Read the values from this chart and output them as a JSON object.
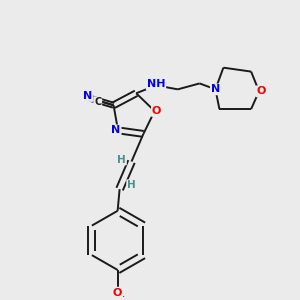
{
  "bg_color": "#ebebeb",
  "bond_color": "#1a1a1a",
  "atom_colors": {
    "N": "#0000ee",
    "O": "#ee0000",
    "C": "#1a1a1a",
    "H": "#4a9090"
  },
  "figsize": [
    3.0,
    3.0
  ],
  "dpi": 100,
  "lw": 1.4,
  "fs": 8.0
}
